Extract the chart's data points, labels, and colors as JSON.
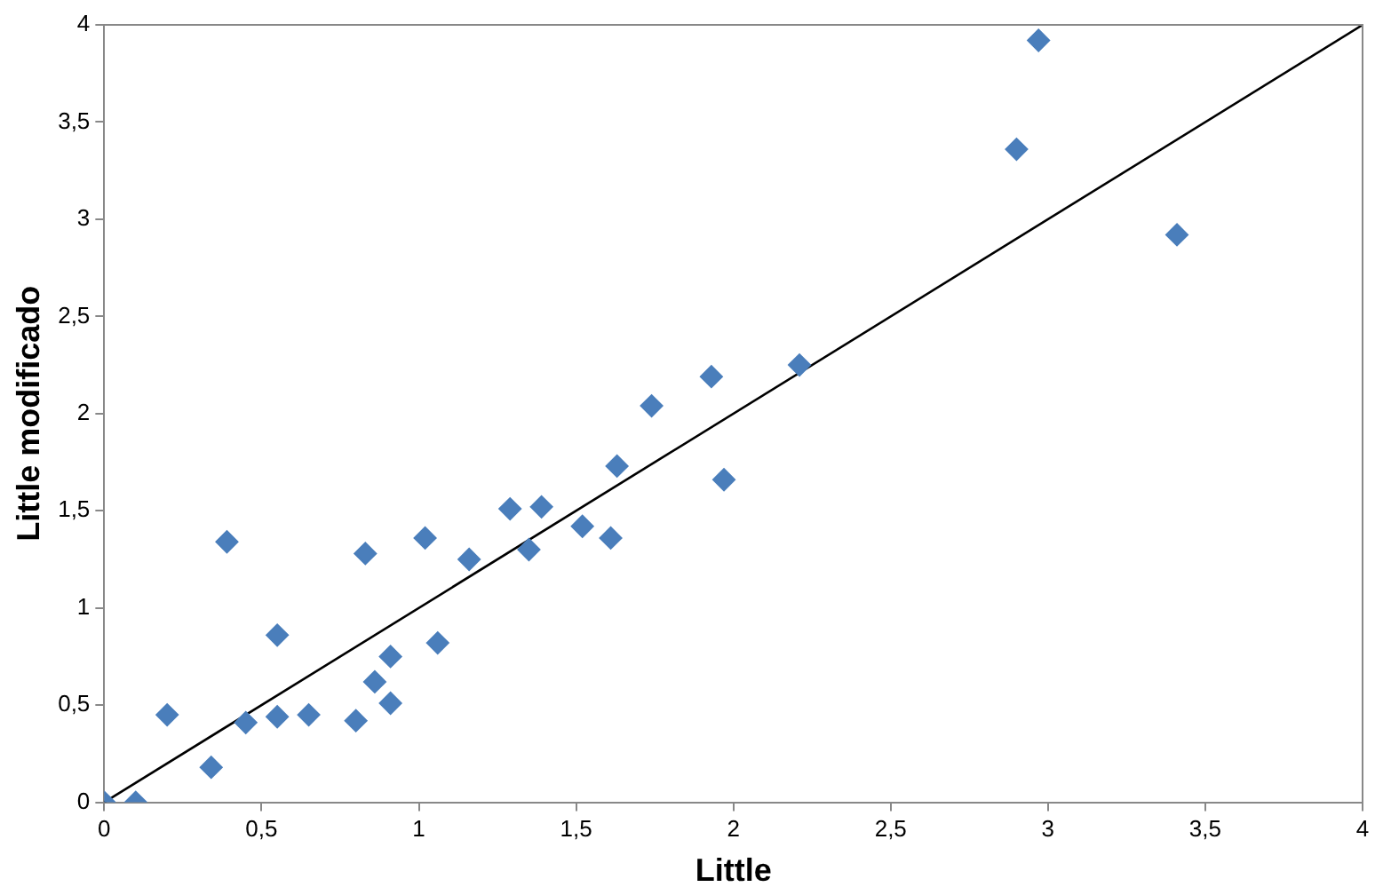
{
  "chart_data": {
    "type": "scatter",
    "xlabel": "Little",
    "ylabel": "Little modificado",
    "marker": "diamond",
    "grid": false,
    "legend": false,
    "xlim": [
      0,
      4
    ],
    "ylim": [
      0,
      4
    ],
    "xticks": [
      0,
      {
        "value": 0.5,
        "label": "0,5"
      },
      1,
      {
        "value": 1.5,
        "label": "1,5"
      },
      2,
      {
        "value": 2.5,
        "label": "2,5"
      },
      3,
      {
        "value": 3.5,
        "label": "3,5"
      },
      4
    ],
    "yticks": [
      0,
      {
        "value": 0.5,
        "label": "0,5"
      },
      1,
      {
        "value": 1.5,
        "label": "1,5"
      },
      2,
      {
        "value": 2.5,
        "label": "2,5"
      },
      3,
      {
        "value": 3.5,
        "label": "3,5"
      },
      4
    ],
    "series": [
      {
        "color": "#4a7ebb",
        "x": [
          0,
          0.1,
          0.2,
          0.34,
          0.39,
          0.45,
          0.55,
          0.55,
          0.65,
          0.8,
          0.83,
          0.86,
          0.91,
          0.91,
          1.02,
          1.06,
          1.16,
          1.29,
          1.35,
          1.39,
          1.52,
          1.61,
          1.63,
          1.74,
          1.93,
          1.97,
          2.21,
          2.9,
          2.97,
          3.41
        ],
        "values": [
          0,
          0,
          0.45,
          0.18,
          1.34,
          0.41,
          0.86,
          0.44,
          0.45,
          0.42,
          1.28,
          0.62,
          0.75,
          0.51,
          1.36,
          0.82,
          1.25,
          1.51,
          1.3,
          1.52,
          1.42,
          1.36,
          1.73,
          2.04,
          2.19,
          1.66,
          2.25,
          3.36,
          3.92,
          2.92
        ]
      },
      {
        "type": "line",
        "color": "#000000",
        "marker": "none",
        "x": [
          0,
          4
        ],
        "values": [
          0,
          4
        ]
      }
    ]
  }
}
